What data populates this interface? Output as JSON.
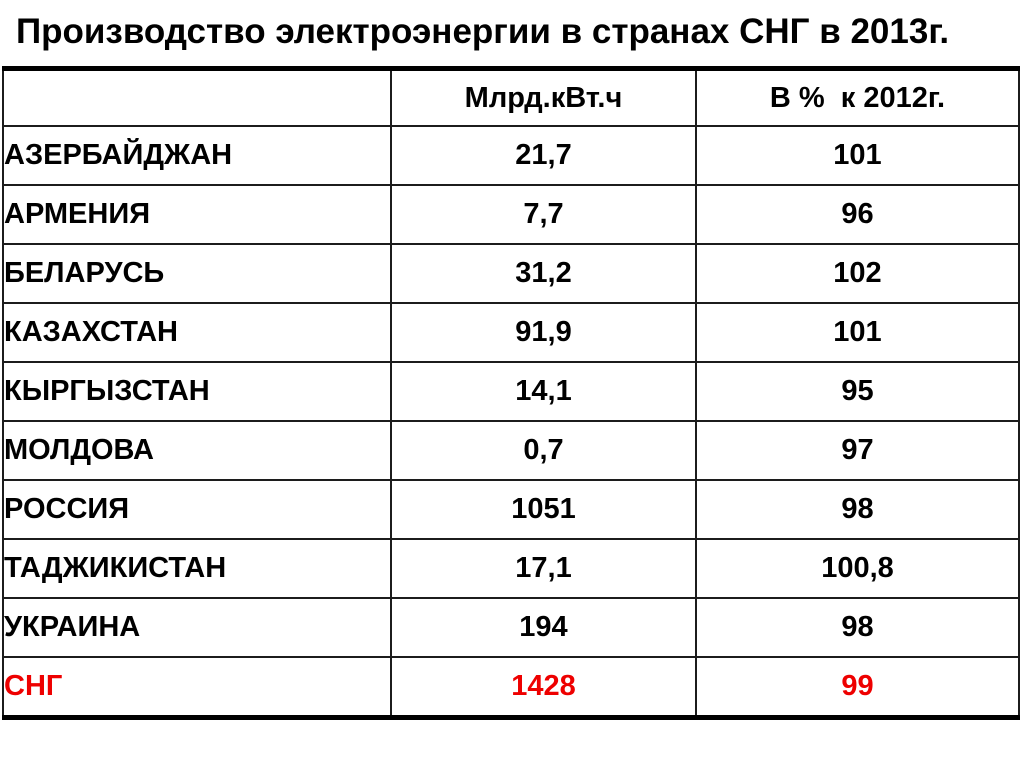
{
  "title": "Производство электроэнергии в странах СНГ в 2013г.",
  "table": {
    "columns": [
      "",
      "Млрд.кВт.ч",
      "В %  к 2012г."
    ],
    "rows": [
      {
        "country": "АЗЕРБАЙДЖАН",
        "value": "21,7",
        "percent": "101",
        "is_total": false
      },
      {
        "country": "АРМЕНИЯ",
        "value": "7,7",
        "percent": "96",
        "is_total": false
      },
      {
        "country": "БЕЛАРУСЬ",
        "value": "31,2",
        "percent": "102",
        "is_total": false
      },
      {
        "country": "КАЗАХСТАН",
        "value": "91,9",
        "percent": "101",
        "is_total": false
      },
      {
        "country": "КЫРГЫЗСТАН",
        "value": "14,1",
        "percent": "95",
        "is_total": false
      },
      {
        "country": "МОЛДОВА",
        "value": "0,7",
        "percent": "97",
        "is_total": false
      },
      {
        "country": "РОССИЯ",
        "value": "1051",
        "percent": "98",
        "is_total": false
      },
      {
        "country": "ТАДЖИКИСТАН",
        "value": "17,1",
        "percent": "100,8",
        "is_total": false
      },
      {
        "country": "УКРАИНА",
        "value": "194",
        "percent": "98",
        "is_total": false
      },
      {
        "country": "СНГ",
        "value": "1428",
        "percent": "99",
        "is_total": true
      }
    ],
    "colors": {
      "text": "#000000",
      "total_row": "#ee0000",
      "border": "#000000",
      "background": "#ffffff"
    }
  },
  "chart_data": {
    "type": "table",
    "title": "Производство электроэнергии в странах СНГ в 2013г.",
    "columns": [
      "",
      "Млрд.кВт.ч",
      "В % к 2012г."
    ],
    "rows": [
      [
        "АЗЕРБАЙДЖАН",
        21.7,
        101
      ],
      [
        "АРМЕНИЯ",
        7.7,
        96
      ],
      [
        "БЕЛАРУСЬ",
        31.2,
        102
      ],
      [
        "КАЗАХСТАН",
        91.9,
        101
      ],
      [
        "КЫРГЫЗСТАН",
        14.1,
        95
      ],
      [
        "МОЛДОВА",
        0.7,
        97
      ],
      [
        "РОССИЯ",
        1051,
        98
      ],
      [
        "ТАДЖИКИСТАН",
        17.1,
        100.8
      ],
      [
        "УКРАИНА",
        194,
        98
      ],
      [
        "СНГ",
        1428,
        99
      ]
    ],
    "notes": "Totals row (СНГ) rendered in red; first value column unit is billion kWh, second column is percent relative to 2012"
  }
}
